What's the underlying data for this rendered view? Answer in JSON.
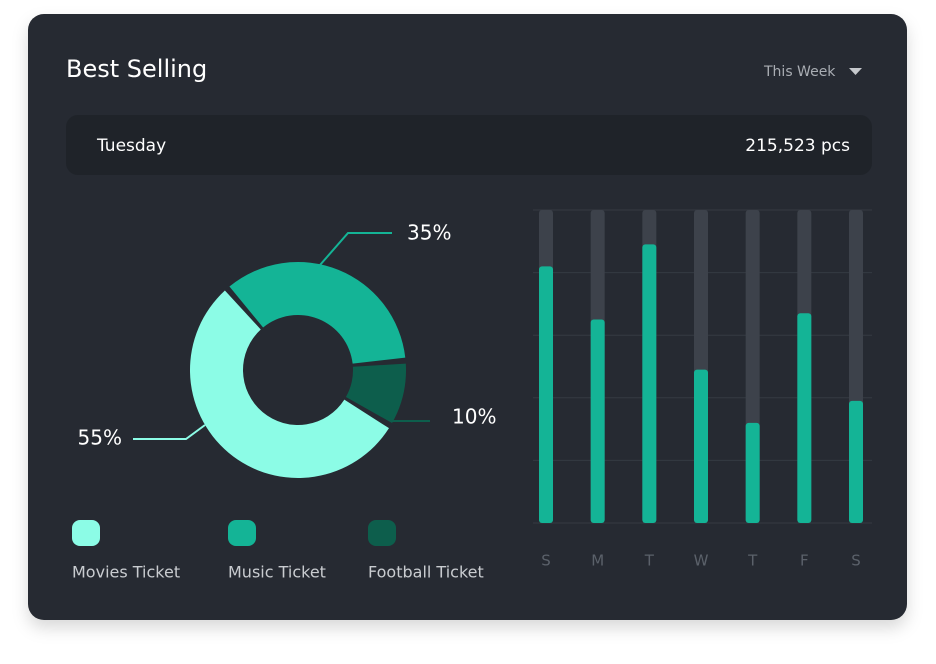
{
  "header": {
    "title": "Best Selling",
    "dropdown": "This Week"
  },
  "summary": {
    "day": "Tuesday",
    "amount": "215,523 pcs"
  },
  "chart_data": [
    {
      "type": "pie",
      "categories": [
        "Movies Ticket",
        "Music Ticket",
        "Football Ticket"
      ],
      "values": [
        55,
        35,
        10
      ],
      "value_labels": [
        "55%",
        "35%",
        "10%"
      ],
      "colors": [
        "#8cfce6",
        "#14b496",
        "#0d5e4c"
      ]
    },
    {
      "type": "bar",
      "categories": [
        "S",
        "M",
        "T",
        "W",
        "T",
        "F",
        "S"
      ],
      "values": [
        82,
        65,
        89,
        49,
        32,
        67,
        39
      ],
      "color": "#14b496",
      "ylim": [
        0,
        100
      ],
      "yticks": [
        0,
        20,
        40,
        60,
        80,
        100
      ],
      "grid": true
    }
  ]
}
